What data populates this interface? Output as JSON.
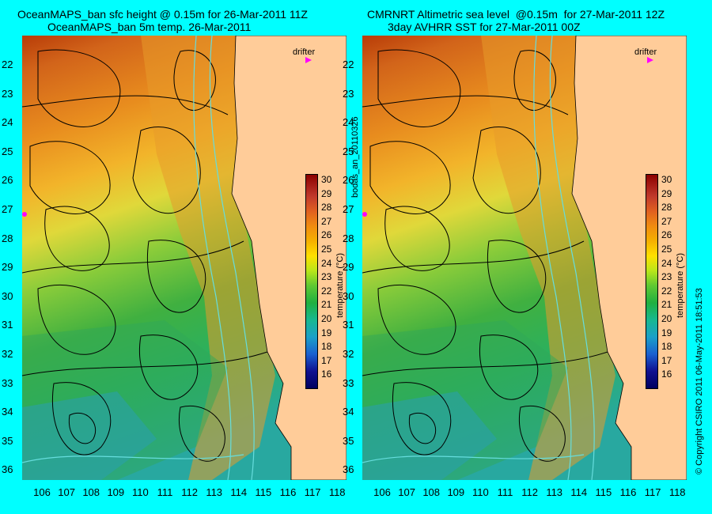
{
  "left": {
    "title1": "OceanMAPS_ban sfc height @ 0.15m for 26-Mar-2011 11Z",
    "title2": "OceanMAPS_ban 5m temp. 26-Mar-2011"
  },
  "right": {
    "title1": "CMRNRT Altimetric sea level  @0.15m  for 27-Mar-2011 12Z",
    "title2": "3day AVHRR SST for 27-Mar-2011 00Z"
  },
  "lat_labels": [
    "22",
    "23",
    "24",
    "25",
    "26",
    "27",
    "28",
    "29",
    "30",
    "31",
    "32",
    "33",
    "34",
    "35",
    "36"
  ],
  "lon_labels": [
    "106",
    "107",
    "108",
    "109",
    "110",
    "111",
    "112",
    "113",
    "114",
    "115",
    "116",
    "117",
    "118"
  ],
  "colorbar": {
    "ticks": [
      "30",
      "29",
      "28",
      "27",
      "26",
      "25",
      "24",
      "23",
      "22",
      "21",
      "20",
      "19",
      "18",
      "17",
      "16"
    ],
    "label": "temperature (°C)"
  },
  "drifter_label": "drifter",
  "side_text": {
    "left": "bodas_an_20110326",
    "right": "© Copyright CSIRO 2011  06-May-2011 18:51:53"
  },
  "colors": {
    "background": "#00ffff",
    "land": "#ffcc99",
    "drifter": "#ff00ff",
    "contour": "#000000",
    "bathymetry": "#66dddd"
  }
}
